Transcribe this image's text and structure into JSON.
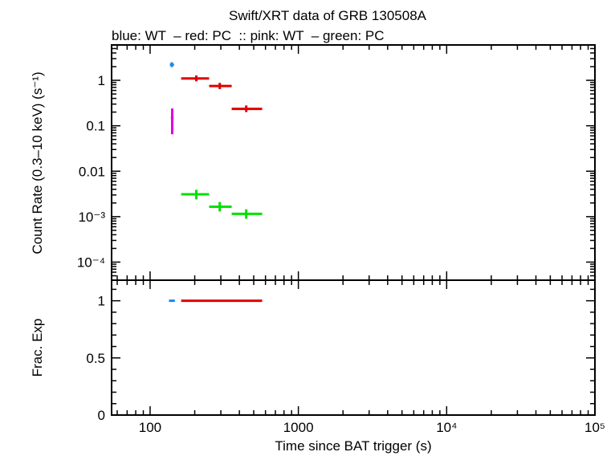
{
  "chart_data": {
    "type": "scatter",
    "title": "Swift/XRT data of GRB 130508A",
    "subtitle": "blue: WT  – red: PC  :: pink: WT  – green: PC",
    "xlabel": "Time since BAT trigger (s)",
    "x_scale": "log",
    "xlim": [
      55,
      100000
    ],
    "x_ticks": [
      {
        "value": 100,
        "label": "100"
      },
      {
        "value": 1000,
        "label": "1000"
      },
      {
        "value": 10000,
        "label": "10⁴"
      },
      {
        "value": 100000,
        "label": "10⁵"
      }
    ],
    "panels": [
      {
        "name": "rate",
        "ylabel": "Count Rate (0.3–10 keV) (s⁻¹)",
        "y_scale": "log",
        "ylim": [
          4e-05,
          6
        ],
        "y_ticks": [
          {
            "value": 1,
            "label": "1"
          },
          {
            "value": 0.1,
            "label": "0.1"
          },
          {
            "value": 0.01,
            "label": "0.01"
          },
          {
            "value": 0.001,
            "label": "10⁻³"
          },
          {
            "value": 0.0001,
            "label": "10⁻⁴"
          }
        ],
        "series": [
          {
            "color": "#1e88e5",
            "points": [
              {
                "x": 140,
                "xlo": 136,
                "xhi": 145,
                "y": 2.2,
                "ylo": 1.95,
                "yhi": 2.5
              }
            ]
          },
          {
            "color": "#e00000",
            "points": [
              {
                "x": 205,
                "xlo": 162,
                "xhi": 250,
                "y": 1.1,
                "ylo": 0.95,
                "yhi": 1.28
              },
              {
                "x": 295,
                "xlo": 250,
                "xhi": 355,
                "y": 0.75,
                "ylo": 0.64,
                "yhi": 0.88
              },
              {
                "x": 445,
                "xlo": 355,
                "xhi": 570,
                "y": 0.235,
                "ylo": 0.2,
                "yhi": 0.28
              }
            ]
          },
          {
            "color": "#e000e0",
            "points": [
              {
                "x": 141,
                "xlo": 138,
                "xhi": 144,
                "y": 0.15,
                "ylo": 0.065,
                "yhi": 0.24
              }
            ]
          },
          {
            "color": "#00e000",
            "points": [
              {
                "x": 205,
                "xlo": 162,
                "xhi": 250,
                "y": 0.0031,
                "ylo": 0.0024,
                "yhi": 0.0039
              },
              {
                "x": 295,
                "xlo": 250,
                "xhi": 355,
                "y": 0.00165,
                "ylo": 0.0013,
                "yhi": 0.0021
              },
              {
                "x": 445,
                "xlo": 355,
                "xhi": 570,
                "y": 0.00115,
                "ylo": 0.0009,
                "yhi": 0.00145
              }
            ]
          }
        ]
      },
      {
        "name": "fracexp",
        "ylabel": "Frac. Exp",
        "y_scale": "linear",
        "ylim": [
          0,
          1.18
        ],
        "y_ticks": [
          {
            "value": 1,
            "label": "1"
          },
          {
            "value": 0.5,
            "label": "0.5"
          },
          {
            "value": 0,
            "label": "0"
          }
        ],
        "series": [
          {
            "color": "#1e88e5",
            "points": [
              {
                "x": 140,
                "xlo": 134,
                "xhi": 147,
                "y": 1
              }
            ]
          },
          {
            "color": "#e00000",
            "points": [
              {
                "x": 300,
                "xlo": 162,
                "xhi": 570,
                "y": 1
              }
            ]
          }
        ]
      }
    ]
  }
}
